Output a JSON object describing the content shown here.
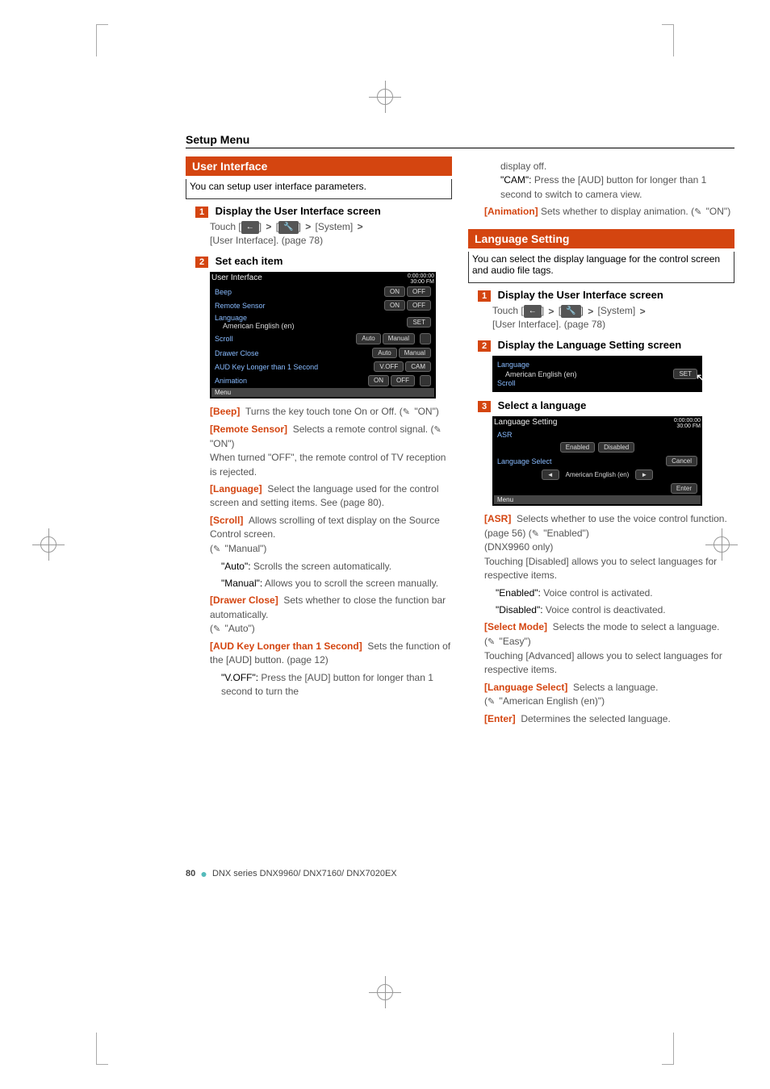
{
  "meta": {
    "page_header": "Setup Menu",
    "page_number": "80",
    "footer_series": "DNX series   DNX9960/ DNX7160/ DNX7020EX",
    "colors": {
      "accent": "#d44510",
      "body_text": "#555555",
      "key_text": "#d44510",
      "link_blue": "#88bbff",
      "black": "#000000"
    }
  },
  "left": {
    "section_title": "User Interface",
    "intro": "You can setup user interface parameters.",
    "step1": {
      "num": "1",
      "title": "Display the User Interface screen",
      "touch_label": "Touch",
      "system_label": "[System]",
      "sub": "[User Interface]. (page 78)"
    },
    "step2": {
      "num": "2",
      "title": "Set each item"
    },
    "screenshot": {
      "title": "User Interface",
      "time_top": "0:00:00:00",
      "time_bottom": "30:00 FM",
      "rows": [
        {
          "label": "Beep",
          "btns": [
            "ON",
            "OFF"
          ]
        },
        {
          "label": "Remote Sensor",
          "btns": [
            "ON",
            "OFF"
          ]
        },
        {
          "label": "Language",
          "sub": "American English (en)",
          "btns": [
            "SET"
          ]
        },
        {
          "label": "Scroll",
          "btns": [
            "Auto",
            "Manual"
          ]
        },
        {
          "label": "Drawer Close",
          "btns": [
            "Auto",
            "Manual"
          ]
        },
        {
          "label": "AUD Key Longer than 1 Second",
          "btns": [
            "V.OFF",
            "CAM"
          ]
        },
        {
          "label": "Animation",
          "btns": [
            "ON",
            "OFF"
          ]
        }
      ],
      "footer": "Menu"
    },
    "definitions": [
      {
        "key": "[Beep]",
        "text": "Turns the key touch tone On or Off. (",
        "default": "\"ON\")"
      },
      {
        "key": "[Remote Sensor]",
        "text": "Selects a remote control signal. (",
        "default": "\"ON\")",
        "extra": "When turned \"OFF\", the remote control of TV reception is rejected."
      },
      {
        "key": "[Language]",
        "text": "Select the language used for the control screen and setting items. See <Language Setting> (page 80)."
      },
      {
        "key": "[Scroll]",
        "text": "Allows scrolling of text display on the Source Control screen.",
        "default_prefix": "(",
        "default": "\"Manual\")",
        "subs": [
          {
            "q": "\"Auto\":",
            "t": "Scrolls the screen automatically."
          },
          {
            "q": "\"Manual\":",
            "t": "Allows you to scroll the screen manually."
          }
        ]
      },
      {
        "key": "[Drawer Close]",
        "text": "Sets whether to close the function bar automatically.",
        "default_prefix": "(",
        "default": "\"Auto\")"
      },
      {
        "key": "[AUD Key Longer than 1 Second]",
        "text": "Sets the function of the [AUD] button. (page 12)",
        "subs": [
          {
            "q": "\"V.OFF\":",
            "t": "Press the [AUD] button for longer than 1 second to turn the"
          }
        ]
      }
    ]
  },
  "right_top": {
    "continuation": [
      {
        "plain": "display off."
      },
      {
        "q": "\"CAM\":",
        "t": "Press the [AUD] button for longer than 1 second to switch to camera view."
      }
    ],
    "animation": {
      "key": "[Animation]",
      "text": "Sets whether to display animation. (",
      "default": "\"ON\")"
    }
  },
  "lang": {
    "section_title": "Language Setting",
    "intro": "You can select the display language for the control screen and audio file tags.",
    "step1": {
      "num": "1",
      "title": "Display the User Interface screen",
      "touch_label": "Touch",
      "system_label": "[System]",
      "sub": "[User Interface]. (page 78)"
    },
    "step2": {
      "num": "2",
      "title": "Display the Language Setting screen",
      "screenshot": {
        "label": "Language",
        "sub": "American English (en)",
        "btn": "SET",
        "below": "Scroll"
      }
    },
    "step3": {
      "num": "3",
      "title": "Select a language",
      "screenshot": {
        "title": "Language Setting",
        "time_top": "0:00:00:00",
        "time_bottom": "30:00 FM",
        "asr_label": "ASR",
        "asr_btns": [
          "Enabled",
          "Disabled"
        ],
        "sel_label": "Language Select",
        "sel_value": "American English (en)",
        "cancel": "Cancel",
        "enter": "Enter",
        "footer": "Menu"
      }
    },
    "definitions": [
      {
        "key": "[ASR]",
        "text": "Selects whether to use the voice control function. (page 56) (",
        "default": "\"Enabled\")",
        "extra": "(DNX9960 only)",
        "extra2": "Touching [Disabled] allows you to select languages for respective items.",
        "subs": [
          {
            "q": "\"Enabled\":",
            "t": "Voice control is activated."
          },
          {
            "q": "\"Disabled\":",
            "t": "Voice control is deactivated."
          }
        ]
      },
      {
        "key": "[Select Mode]",
        "text": "Selects the mode to select a language. (",
        "default": "\"Easy\")",
        "extra2": "Touching [Advanced] allows you to select languages for respective items."
      },
      {
        "key": "[Language Select]",
        "text": "Selects a language.",
        "default_prefix": "(",
        "default": "\"American English (en)\")"
      },
      {
        "key": "[Enter]",
        "text": "Determines the selected language."
      }
    ]
  }
}
